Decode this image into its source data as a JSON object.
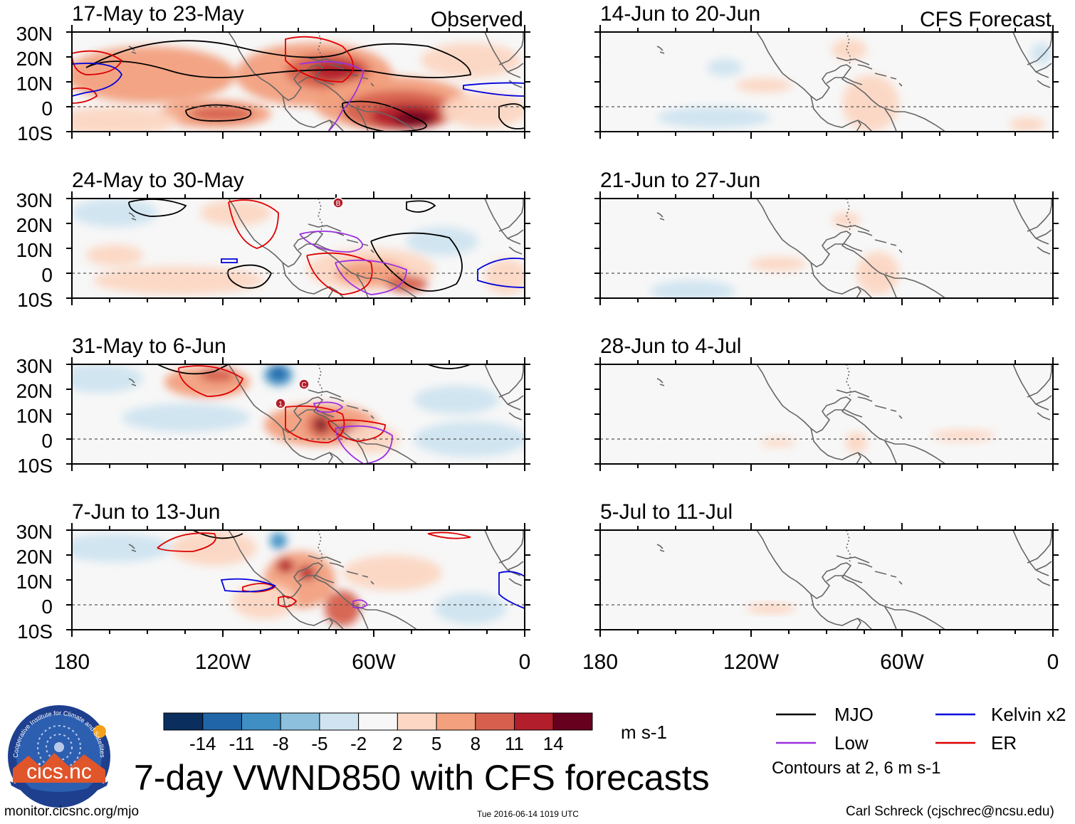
{
  "title": "7-day VWND850 with CFS forecasts",
  "units": "m s-1",
  "footer": {
    "website": "monitor.cicsnc.org/mjo",
    "timestamp": "Tue 2016-06-14 1019 UTC",
    "author": "Carl Schreck (cjschrec@ncsu.edu)"
  },
  "logo": {
    "text": "cics.nc",
    "ring_text": "Cooperative Institute for Climate and Satellites"
  },
  "section_labels": {
    "observed": "Observed",
    "forecast": "CFS Forecast"
  },
  "panels_observed": [
    {
      "label": "17-May to 23-May"
    },
    {
      "label": "24-May to 30-May"
    },
    {
      "label": "31-May to 6-Jun"
    },
    {
      "label": "7-Jun to 13-Jun"
    }
  ],
  "panels_forecast": [
    {
      "label": "14-Jun to 20-Jun"
    },
    {
      "label": "21-Jun to 27-Jun"
    },
    {
      "label": "28-Jun to 4-Jul"
    },
    {
      "label": "5-Jul to 11-Jul"
    }
  ],
  "lat_labels": [
    "30N",
    "20N",
    "10N",
    "0",
    "10S"
  ],
  "lon_labels": [
    "180",
    "120W",
    "60W",
    "0"
  ],
  "colorbar": {
    "colors": [
      "#0a2f5f",
      "#1f65a8",
      "#3f8fc4",
      "#8cc0dd",
      "#cfe4f0",
      "#f7f7f7",
      "#fcd7c3",
      "#f2a07e",
      "#d6604d",
      "#b21e2b",
      "#67001f"
    ],
    "labels": [
      "-14",
      "-11",
      "-8",
      "-5",
      "-2",
      "2",
      "5",
      "8",
      "11",
      "14"
    ]
  },
  "legend": {
    "items": [
      {
        "name": "MJO",
        "color": "#000000"
      },
      {
        "name": "Kelvin x2",
        "color": "#0000dd"
      },
      {
        "name": "Low",
        "color": "#9b30e0"
      },
      {
        "name": "ER",
        "color": "#dd0000"
      }
    ],
    "note": "Contours at 2, 6 m s-1"
  }
}
